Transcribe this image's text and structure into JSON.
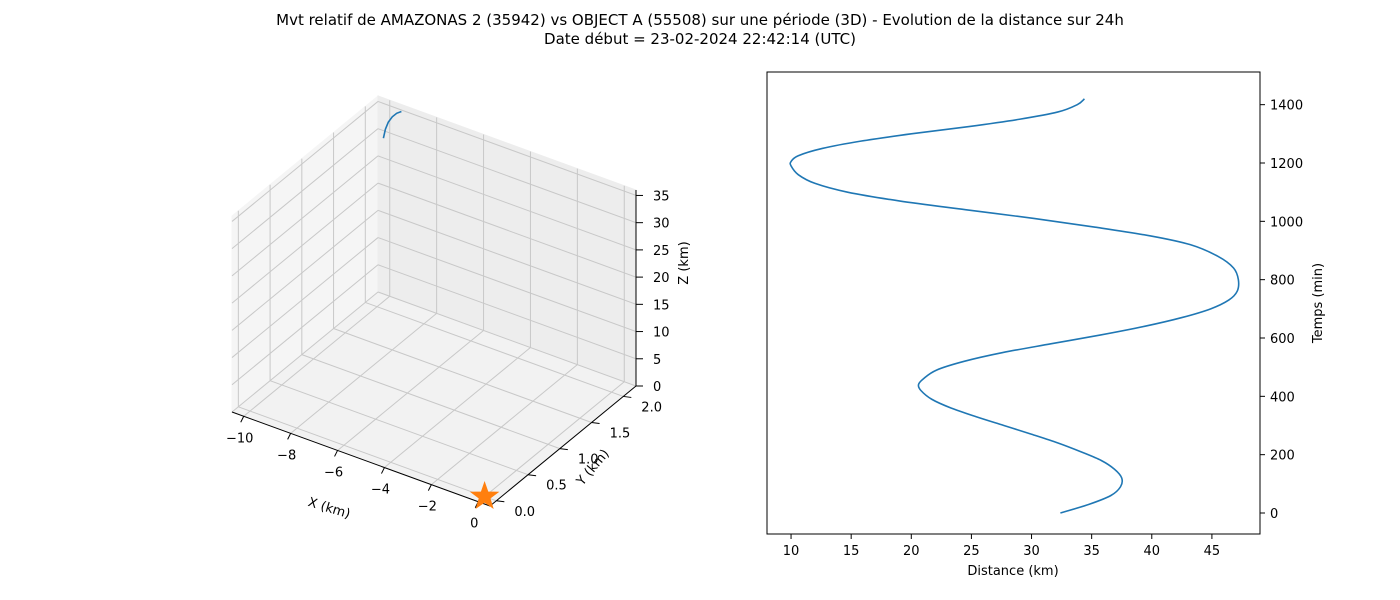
{
  "title_line1": "Mvt relatif de AMAZONAS 2 (35942) vs OBJECT A (55508) sur une période (3D) - Evolution de la distance sur 24h",
  "title_line2": "Date début = 23-02-2024 22:42:14 (UTC)",
  "chart_data": [
    {
      "type": "line3d",
      "xlabel": "X (km)",
      "ylabel": "Y (km)",
      "zlabel": "Z (km)",
      "xlim": [
        -10.5,
        0.5
      ],
      "ylim": [
        -0.1,
        2.2
      ],
      "zlim": [
        0,
        36
      ],
      "x_ticks": [
        "−10",
        "−8",
        "−6",
        "−4",
        "−2",
        "0"
      ],
      "y_ticks": [
        "0.0",
        "0.5",
        "1.0",
        "1.5",
        "2.0"
      ],
      "z_ticks": [
        "0",
        "5",
        "10",
        "15",
        "20",
        "25",
        "30",
        "35"
      ],
      "grid": true,
      "series": [
        {
          "color": "#1f77b4",
          "points": [
            {
              "x": -10.0,
              "y": 2.1,
              "z": 30.0
            },
            {
              "x": -9.97,
              "y": 2.12,
              "z": 31.5
            },
            {
              "x": -9.9,
              "y": 2.14,
              "z": 32.7
            },
            {
              "x": -9.78,
              "y": 2.16,
              "z": 33.7
            },
            {
              "x": -9.62,
              "y": 2.17,
              "z": 34.5
            },
            {
              "x": -9.45,
              "y": 2.18,
              "z": 35.0
            }
          ]
        }
      ],
      "marker": {
        "x": 0.0,
        "y": 0.0,
        "z": 0.0,
        "shape": "star",
        "color": "#ff7f0e"
      }
    },
    {
      "type": "line",
      "xlabel": "Distance (km)",
      "ylabel": "Temps (min)",
      "xlim": [
        8,
        49
      ],
      "ylim": [
        -72,
        1512
      ],
      "x_ticks": [
        10,
        15,
        20,
        25,
        30,
        35,
        40,
        45
      ],
      "y_ticks": [
        0,
        200,
        400,
        600,
        800,
        1000,
        1200,
        1400
      ],
      "grid": false,
      "series": [
        {
          "color": "#1f77b4",
          "points": [
            [
              32.4,
              0
            ],
            [
              34.8,
              30
            ],
            [
              36.6,
              60
            ],
            [
              37.4,
              90
            ],
            [
              37.5,
              120
            ],
            [
              36.9,
              150
            ],
            [
              35.8,
              180
            ],
            [
              34.1,
              210
            ],
            [
              32.2,
              240
            ],
            [
              30.0,
              270
            ],
            [
              27.7,
              300
            ],
            [
              25.4,
              330
            ],
            [
              23.3,
              360
            ],
            [
              21.7,
              390
            ],
            [
              20.8,
              420
            ],
            [
              20.6,
              440
            ],
            [
              21.0,
              460
            ],
            [
              22.1,
              490
            ],
            [
              24.4,
              520
            ],
            [
              27.6,
              550
            ],
            [
              31.6,
              580
            ],
            [
              35.7,
              610
            ],
            [
              39.4,
              640
            ],
            [
              42.5,
              670
            ],
            [
              44.9,
              700
            ],
            [
              46.4,
              730
            ],
            [
              47.1,
              760
            ],
            [
              47.2,
              800
            ],
            [
              46.8,
              840
            ],
            [
              45.5,
              880
            ],
            [
              43.2,
              920
            ],
            [
              39.9,
              950
            ],
            [
              35.3,
              980
            ],
            [
              30.2,
              1010
            ],
            [
              24.5,
              1040
            ],
            [
              19.0,
              1070
            ],
            [
              14.7,
              1100
            ],
            [
              12.0,
              1130
            ],
            [
              10.6,
              1160
            ],
            [
              10.0,
              1190
            ],
            [
              10.0,
              1205
            ],
            [
              10.6,
              1225
            ],
            [
              12.6,
              1250
            ],
            [
              15.8,
              1275
            ],
            [
              20.0,
              1300
            ],
            [
              24.8,
              1325
            ],
            [
              29.0,
              1350
            ],
            [
              32.2,
              1375
            ],
            [
              33.8,
              1400
            ],
            [
              34.4,
              1420
            ]
          ]
        }
      ]
    }
  ]
}
